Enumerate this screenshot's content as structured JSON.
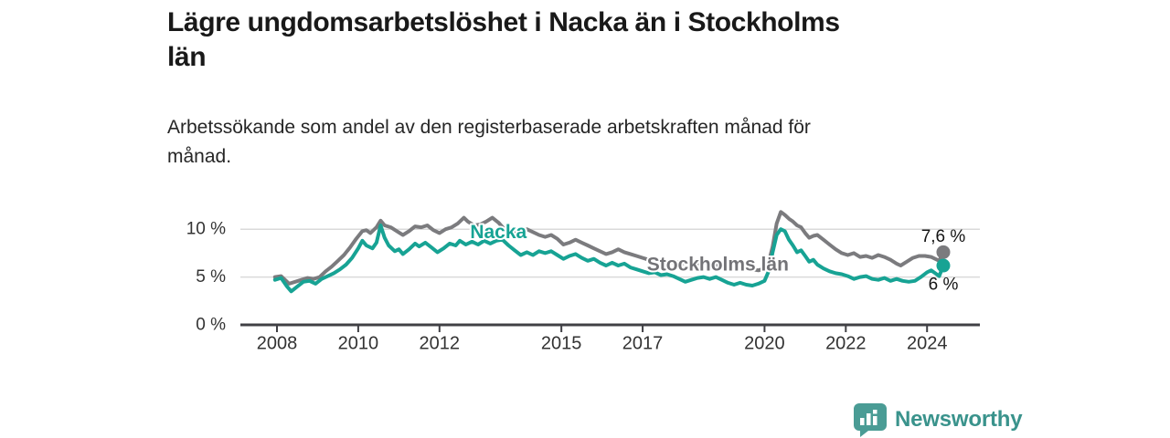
{
  "header": {
    "title_line1": "Lägre ungdomsarbetslöshet i Nacka än i Stockholms",
    "title_line2": "län",
    "subtitle_line1": "Arbetssökande som andel av den registerbaserade arbetskraften månad för",
    "subtitle_line2": "månad."
  },
  "footer": {
    "brand": "Newsworthy",
    "brand_text_color": "#3A938C",
    "brand_mark_color": "#4A9C95"
  },
  "chart_data": {
    "type": "line",
    "title": "Lägre ungdomsarbetslöshet i Nacka än i Stockholms län",
    "subtitle": "Arbetssökande som andel av den registerbaserade arbetskraften månad för månad.",
    "xlabel": "",
    "ylabel": "",
    "grid": "horizontal-y",
    "legend_position": "inline-labels",
    "x_range": [
      2007.1,
      2025.3
    ],
    "x_axis": {
      "ticks": [
        2008,
        2010,
        2012,
        2015,
        2017,
        2020,
        2022,
        2024
      ],
      "labels": [
        "2008",
        "2010",
        "2012",
        "2015",
        "2017",
        "2020",
        "2022",
        "2024"
      ]
    },
    "y_axis": {
      "range": [
        0,
        12.5
      ],
      "ticks": [
        0,
        5,
        10
      ],
      "labels": [
        "0 %",
        "5 %",
        "10 %"
      ],
      "gridline_ticks": [
        5,
        10
      ]
    },
    "colors": {
      "axis": "#404045",
      "tick_text": "#333333",
      "grid": "#DADADA",
      "end_label_text": "#141414"
    },
    "series": [
      {
        "name": "Stockholms län",
        "color": "#7B7B7E",
        "label_color": "#737377",
        "label_pos": {
          "x": 2018.85,
          "y": 6.3
        },
        "end_label": "7,6 %",
        "end_label_dy": -17,
        "end_value": 7.6,
        "points": [
          [
            2007.95,
            5.0
          ],
          [
            2008.1,
            5.1
          ],
          [
            2008.3,
            4.3
          ],
          [
            2008.45,
            4.5
          ],
          [
            2008.6,
            4.7
          ],
          [
            2008.75,
            4.9
          ],
          [
            2008.9,
            4.8
          ],
          [
            2009.05,
            5.0
          ],
          [
            2009.2,
            5.6
          ],
          [
            2009.35,
            6.1
          ],
          [
            2009.5,
            6.7
          ],
          [
            2009.65,
            7.3
          ],
          [
            2009.8,
            8.1
          ],
          [
            2009.95,
            9.0
          ],
          [
            2010.1,
            9.8
          ],
          [
            2010.2,
            9.9
          ],
          [
            2010.3,
            9.6
          ],
          [
            2010.45,
            10.2
          ],
          [
            2010.55,
            10.9
          ],
          [
            2010.65,
            10.4
          ],
          [
            2010.8,
            10.2
          ],
          [
            2010.95,
            9.8
          ],
          [
            2011.1,
            9.4
          ],
          [
            2011.25,
            9.8
          ],
          [
            2011.4,
            10.3
          ],
          [
            2011.55,
            10.2
          ],
          [
            2011.7,
            10.4
          ],
          [
            2011.85,
            9.9
          ],
          [
            2012.0,
            9.6
          ],
          [
            2012.15,
            10.0
          ],
          [
            2012.3,
            10.2
          ],
          [
            2012.45,
            10.6
          ],
          [
            2012.6,
            11.2
          ],
          [
            2012.7,
            10.8
          ],
          [
            2012.85,
            10.4
          ],
          [
            2013.0,
            10.5
          ],
          [
            2013.15,
            10.8
          ],
          [
            2013.3,
            11.2
          ],
          [
            2013.45,
            10.7
          ],
          [
            2013.6,
            10.0
          ],
          [
            2013.7,
            9.4
          ],
          [
            2013.85,
            9.7
          ],
          [
            2014.0,
            9.9
          ],
          [
            2014.15,
            10.0
          ],
          [
            2014.3,
            9.7
          ],
          [
            2014.45,
            9.4
          ],
          [
            2014.6,
            9.2
          ],
          [
            2014.75,
            9.4
          ],
          [
            2014.9,
            9.0
          ],
          [
            2015.05,
            8.4
          ],
          [
            2015.2,
            8.6
          ],
          [
            2015.35,
            8.9
          ],
          [
            2015.5,
            8.6
          ],
          [
            2015.65,
            8.3
          ],
          [
            2015.8,
            8.0
          ],
          [
            2015.95,
            7.7
          ],
          [
            2016.1,
            7.4
          ],
          [
            2016.25,
            7.6
          ],
          [
            2016.4,
            7.9
          ],
          [
            2016.55,
            7.6
          ],
          [
            2016.7,
            7.4
          ],
          [
            2016.85,
            7.2
          ],
          [
            2017.0,
            7.0
          ],
          [
            2017.15,
            6.8
          ],
          [
            2017.3,
            6.6
          ],
          [
            2017.45,
            6.5
          ],
          [
            2017.6,
            6.4
          ],
          [
            2017.75,
            6.6
          ],
          [
            2017.9,
            6.5
          ],
          [
            2018.05,
            6.4
          ],
          [
            2018.2,
            6.5
          ],
          [
            2018.35,
            6.4
          ],
          [
            2018.5,
            6.5
          ],
          [
            2018.65,
            6.4
          ],
          [
            2018.8,
            6.3
          ],
          [
            2018.95,
            6.2
          ],
          [
            2019.1,
            6.1
          ],
          [
            2019.25,
            6.2
          ],
          [
            2019.4,
            6.1
          ],
          [
            2019.55,
            5.9
          ],
          [
            2019.7,
            5.8
          ],
          [
            2019.85,
            5.7
          ],
          [
            2020.0,
            5.9
          ],
          [
            2020.1,
            6.5
          ],
          [
            2020.2,
            8.2
          ],
          [
            2020.3,
            10.6
          ],
          [
            2020.4,
            11.8
          ],
          [
            2020.5,
            11.5
          ],
          [
            2020.6,
            11.1
          ],
          [
            2020.7,
            10.8
          ],
          [
            2020.8,
            10.4
          ],
          [
            2020.9,
            10.2
          ],
          [
            2021.0,
            9.6
          ],
          [
            2021.1,
            9.1
          ],
          [
            2021.2,
            9.3
          ],
          [
            2021.3,
            9.4
          ],
          [
            2021.45,
            8.9
          ],
          [
            2021.6,
            8.4
          ],
          [
            2021.75,
            7.9
          ],
          [
            2021.9,
            7.5
          ],
          [
            2022.05,
            7.3
          ],
          [
            2022.2,
            7.5
          ],
          [
            2022.35,
            7.1
          ],
          [
            2022.5,
            7.2
          ],
          [
            2022.65,
            7.0
          ],
          [
            2022.8,
            7.3
          ],
          [
            2022.95,
            7.1
          ],
          [
            2023.1,
            6.8
          ],
          [
            2023.25,
            6.4
          ],
          [
            2023.35,
            6.2
          ],
          [
            2023.5,
            6.6
          ],
          [
            2023.65,
            7.0
          ],
          [
            2023.8,
            7.2
          ],
          [
            2023.95,
            7.2
          ],
          [
            2024.1,
            7.1
          ],
          [
            2024.2,
            6.9
          ],
          [
            2024.3,
            6.7
          ],
          [
            2024.4,
            7.6
          ]
        ]
      },
      {
        "name": "Nacka",
        "color": "#17A394",
        "label_color": "#17A394",
        "label_pos": {
          "x": 2013.45,
          "y": 9.7
        },
        "end_label": "6 %",
        "end_label_dy": 21,
        "end_value": 6.2,
        "points": [
          [
            2007.95,
            4.7
          ],
          [
            2008.1,
            4.9
          ],
          [
            2008.25,
            4.0
          ],
          [
            2008.35,
            3.5
          ],
          [
            2008.5,
            4.0
          ],
          [
            2008.65,
            4.5
          ],
          [
            2008.8,
            4.6
          ],
          [
            2008.95,
            4.3
          ],
          [
            2009.1,
            4.8
          ],
          [
            2009.25,
            5.1
          ],
          [
            2009.4,
            5.4
          ],
          [
            2009.55,
            5.8
          ],
          [
            2009.7,
            6.3
          ],
          [
            2009.85,
            7.0
          ],
          [
            2010.0,
            8.0
          ],
          [
            2010.1,
            8.8
          ],
          [
            2010.2,
            8.3
          ],
          [
            2010.35,
            8.0
          ],
          [
            2010.45,
            8.6
          ],
          [
            2010.55,
            10.4
          ],
          [
            2010.65,
            9.1
          ],
          [
            2010.75,
            8.3
          ],
          [
            2010.9,
            7.7
          ],
          [
            2011.0,
            7.9
          ],
          [
            2011.1,
            7.4
          ],
          [
            2011.25,
            7.9
          ],
          [
            2011.4,
            8.5
          ],
          [
            2011.5,
            8.2
          ],
          [
            2011.65,
            8.6
          ],
          [
            2011.8,
            8.1
          ],
          [
            2011.95,
            7.6
          ],
          [
            2012.1,
            8.0
          ],
          [
            2012.25,
            8.5
          ],
          [
            2012.4,
            8.3
          ],
          [
            2012.5,
            8.8
          ],
          [
            2012.65,
            8.4
          ],
          [
            2012.8,
            8.7
          ],
          [
            2012.95,
            8.4
          ],
          [
            2013.1,
            8.8
          ],
          [
            2013.25,
            8.5
          ],
          [
            2013.4,
            8.8
          ],
          [
            2013.55,
            8.9
          ],
          [
            2013.7,
            8.3
          ],
          [
            2013.85,
            7.8
          ],
          [
            2014.0,
            7.3
          ],
          [
            2014.15,
            7.6
          ],
          [
            2014.3,
            7.3
          ],
          [
            2014.45,
            7.7
          ],
          [
            2014.6,
            7.5
          ],
          [
            2014.75,
            7.7
          ],
          [
            2014.9,
            7.3
          ],
          [
            2015.05,
            6.9
          ],
          [
            2015.2,
            7.2
          ],
          [
            2015.35,
            7.4
          ],
          [
            2015.5,
            7.0
          ],
          [
            2015.65,
            6.7
          ],
          [
            2015.8,
            6.9
          ],
          [
            2015.95,
            6.5
          ],
          [
            2016.1,
            6.2
          ],
          [
            2016.25,
            6.5
          ],
          [
            2016.4,
            6.2
          ],
          [
            2016.55,
            6.4
          ],
          [
            2016.7,
            6.0
          ],
          [
            2016.85,
            5.8
          ],
          [
            2017.0,
            5.6
          ],
          [
            2017.15,
            5.4
          ],
          [
            2017.3,
            5.5
          ],
          [
            2017.45,
            5.2
          ],
          [
            2017.6,
            5.3
          ],
          [
            2017.75,
            5.1
          ],
          [
            2017.9,
            4.8
          ],
          [
            2018.05,
            4.5
          ],
          [
            2018.2,
            4.7
          ],
          [
            2018.35,
            4.9
          ],
          [
            2018.5,
            5.0
          ],
          [
            2018.65,
            4.8
          ],
          [
            2018.8,
            5.0
          ],
          [
            2018.95,
            4.7
          ],
          [
            2019.1,
            4.4
          ],
          [
            2019.25,
            4.2
          ],
          [
            2019.4,
            4.4
          ],
          [
            2019.55,
            4.2
          ],
          [
            2019.7,
            4.1
          ],
          [
            2019.85,
            4.3
          ],
          [
            2020.0,
            4.6
          ],
          [
            2020.1,
            5.6
          ],
          [
            2020.2,
            7.6
          ],
          [
            2020.3,
            9.4
          ],
          [
            2020.4,
            10.0
          ],
          [
            2020.5,
            9.8
          ],
          [
            2020.6,
            8.9
          ],
          [
            2020.7,
            8.3
          ],
          [
            2020.8,
            7.6
          ],
          [
            2020.9,
            7.8
          ],
          [
            2021.0,
            7.2
          ],
          [
            2021.1,
            6.6
          ],
          [
            2021.2,
            6.8
          ],
          [
            2021.3,
            6.3
          ],
          [
            2021.45,
            5.9
          ],
          [
            2021.6,
            5.6
          ],
          [
            2021.75,
            5.4
          ],
          [
            2021.9,
            5.3
          ],
          [
            2022.05,
            5.1
          ],
          [
            2022.2,
            4.8
          ],
          [
            2022.35,
            5.0
          ],
          [
            2022.5,
            5.1
          ],
          [
            2022.65,
            4.8
          ],
          [
            2022.8,
            4.7
          ],
          [
            2022.95,
            4.9
          ],
          [
            2023.1,
            4.6
          ],
          [
            2023.25,
            4.8
          ],
          [
            2023.4,
            4.6
          ],
          [
            2023.55,
            4.5
          ],
          [
            2023.7,
            4.6
          ],
          [
            2023.85,
            5.0
          ],
          [
            2024.0,
            5.5
          ],
          [
            2024.1,
            5.7
          ],
          [
            2024.2,
            5.4
          ],
          [
            2024.3,
            5.1
          ],
          [
            2024.4,
            6.2
          ]
        ]
      }
    ]
  }
}
